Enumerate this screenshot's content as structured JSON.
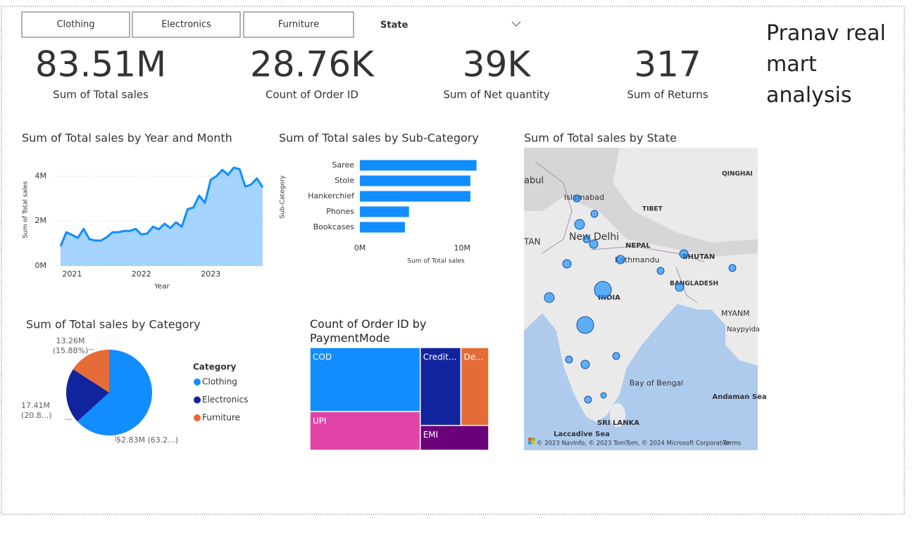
{
  "slicer": {
    "buttons": [
      "Clothing",
      "Electronics",
      "Furniture"
    ],
    "dropdown": "State"
  },
  "title": "Pranav real mart analysis",
  "cards": [
    {
      "value": "83.51M",
      "label": "Sum of Total sales"
    },
    {
      "value": "28.76K",
      "label": "Count of Order ID"
    },
    {
      "value": "39K",
      "label": "Sum of Net quantity"
    },
    {
      "value": "317",
      "label": "Sum of Returns"
    }
  ],
  "chart_data": [
    {
      "type": "area",
      "title": "Sum of Total sales by Year and Month",
      "xlabel": "Year",
      "ylabel": "Sum of Total sales",
      "categories": [
        null,
        null,
        "2021",
        null,
        null,
        null,
        null,
        null,
        null,
        null,
        null,
        null,
        null,
        null,
        "2022",
        null,
        null,
        null,
        null,
        null,
        null,
        null,
        null,
        null,
        null,
        null,
        "2023",
        null,
        null,
        null,
        null,
        null,
        null,
        null,
        null,
        null
      ],
      "values": [
        0.88,
        1.5,
        1.38,
        1.25,
        1.65,
        1.19,
        1.13,
        1.13,
        1.28,
        1.5,
        1.5,
        1.56,
        1.56,
        1.65,
        1.4,
        1.44,
        1.75,
        1.63,
        1.88,
        1.69,
        1.94,
        1.75,
        2.53,
        2.6,
        3.13,
        2.81,
        3.84,
        4.0,
        4.28,
        4.06,
        4.38,
        4.31,
        3.53,
        3.63,
        3.9,
        3.5
      ],
      "color": "#118dff",
      "ylim": [
        0,
        4.7
      ],
      "yticks": [
        {
          "value": 0,
          "label": "0M"
        },
        {
          "value": 2,
          "label": "2M"
        },
        {
          "value": 4,
          "label": "4M"
        }
      ],
      "grid": true
    },
    {
      "type": "hbar",
      "title": "Sum of Total sales by Sub-Category",
      "xlabel": "Sum of Total sales",
      "ylabel": "Sub-Category",
      "categories": [
        "Saree",
        "Stole",
        "Hankerchief",
        "Phones",
        "Bookcases"
      ],
      "values": [
        11.4,
        10.8,
        10.8,
        4.8,
        4.4
      ],
      "color": "#118dff",
      "xlim": [
        0,
        11.7
      ],
      "xticks": [
        {
          "value": 0,
          "label": "0M"
        },
        {
          "value": 10,
          "label": "10M"
        }
      ]
    },
    {
      "type": "pie",
      "title": "Sum of Total sales by Category",
      "legend_title": "Category",
      "categories": [
        "Clothing",
        "Electronics",
        "Furniture"
      ],
      "values": [
        52.83,
        17.41,
        13.26
      ],
      "value_labels": [
        "52.83M (63.2...)",
        "17.41M (20.8...)",
        "13.26M (15.88%)"
      ],
      "colors": [
        "#118dff",
        "#12239e",
        "#e66c37"
      ]
    },
    {
      "type": "treemap",
      "title": "Count of Order ID by PaymentMode",
      "categories": [
        "COD",
        "UPI",
        "Credit...",
        "De...",
        "EMI"
      ],
      "values": [
        11060,
        6680,
        4960,
        3390,
        2660
      ],
      "colors": [
        "#118dff",
        "#e044a7",
        "#12239e",
        "#e66c37",
        "#6b007b"
      ]
    },
    {
      "type": "map",
      "title": "Sum of Total sales by State",
      "values": [
        1.7,
        1.7,
        3.4,
        1.7,
        2.5,
        2.5,
        2.5,
        1.7,
        2.5,
        1.7,
        2.5,
        10,
        3.4,
        10,
        1.7,
        2.5,
        1.7,
        1.1,
        1.7
      ],
      "color": "#118dff",
      "place_labels": [
        "abul",
        "Islamabad",
        "TAN",
        "New Delhi",
        "TIBET",
        "QINGHAI",
        "NEPAL",
        "Kathmandu",
        "BHUTAN",
        "BANGLADESH",
        "INDIA",
        "MYANM",
        "Naypyida",
        "Bay of Bengal",
        "Andaman Sea",
        "SRI LANKA",
        "Laccadive Sea"
      ],
      "attribution": "© 2023 NavInfo, © 2023 TomTom, © 2024 Microsoft Corporation",
      "terms": "Terms"
    }
  ]
}
